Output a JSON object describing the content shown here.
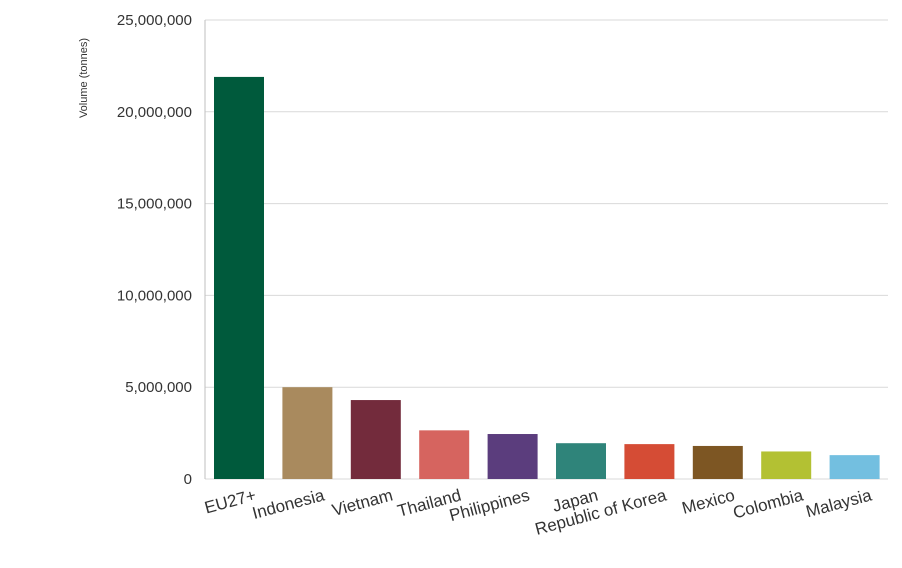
{
  "chart_data": {
    "type": "bar",
    "ylabel": "Volume (tonnes)",
    "xlabel": "",
    "ylim": [
      0,
      25000000
    ],
    "yticks": [
      "0",
      "5,000,000",
      "10,000,000",
      "15,000,000",
      "20,000,000",
      "25,000,000"
    ],
    "grid": true,
    "categories": [
      "EU27+",
      "Indonesia",
      "Vietnam",
      "Thailand",
      "Philippines",
      "Japan",
      "Republic of Korea",
      "Mexico",
      "Colombia",
      "Malaysia"
    ],
    "values": [
      21900000,
      5000000,
      4300000,
      2650000,
      2450000,
      1950000,
      1900000,
      1800000,
      1500000,
      1300000
    ],
    "colors": [
      "#005a3c",
      "#a98a5e",
      "#732b3c",
      "#d6645f",
      "#5b3d7d",
      "#2f847a",
      "#d54c35",
      "#7d5623",
      "#b3c133",
      "#73bfe0"
    ]
  }
}
